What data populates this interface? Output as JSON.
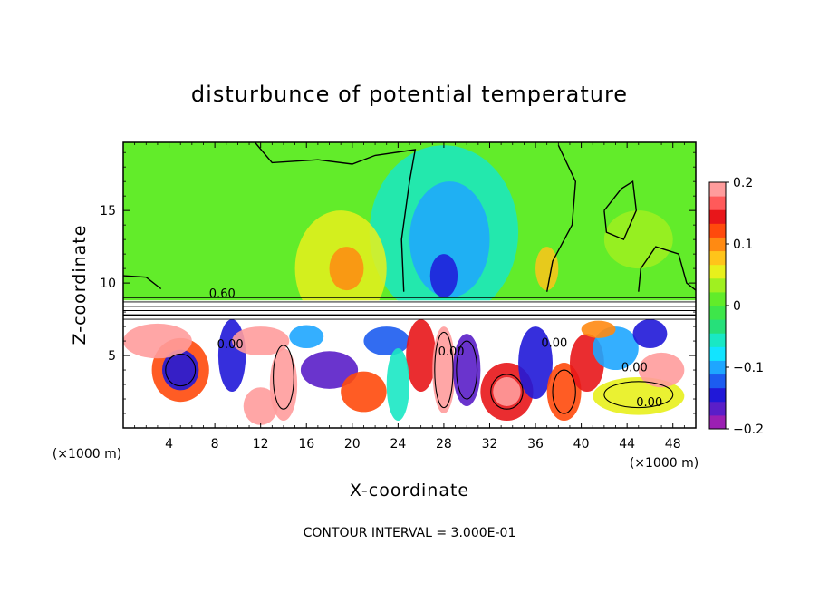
{
  "chart_data": {
    "type": "heatmap",
    "title": "disturbunce of potential temperature",
    "xlabel": "X-coordinate",
    "ylabel": "Z-coordinate",
    "x_unit": "(×1000 m)",
    "x_ticks": [
      4,
      8,
      12,
      16,
      20,
      24,
      28,
      32,
      36,
      40,
      44,
      48
    ],
    "y_ticks": [
      5,
      10,
      15
    ],
    "xlim": [
      0,
      50
    ],
    "ylim": [
      0,
      19.7
    ],
    "colorbar": {
      "ticks": [
        0.2,
        0.1,
        0,
        -0.1,
        -0.2
      ],
      "tick_labels": [
        "0.2",
        "0.1",
        "0",
        "−0.1",
        "−0.2"
      ],
      "range": [
        -0.2,
        0.2
      ],
      "colors": [
        "#9b1fb3",
        "#5a1ec8",
        "#2018d8",
        "#1c5cf0",
        "#1ea6ff",
        "#12e4ff",
        "#19e8c4",
        "#26e07a",
        "#3ee64a",
        "#62ec2a",
        "#a0f020",
        "#e8f01c",
        "#ffc41a",
        "#ff8a12",
        "#ff4a0c",
        "#e8161a",
        "#ff5a5a",
        "#ff9c9c"
      ]
    },
    "contour_labels": [
      "0.60",
      "0.00",
      "0.00",
      "0.00",
      "0.00",
      "0.00"
    ],
    "footnote": "CONTOUR INTERVAL = 3.000E-01",
    "fields": {
      "upper_background": 0.0,
      "upper_blobs": [
        {
          "x": 28,
          "z": 13.5,
          "rx": 6.5,
          "rz": 6,
          "v": -0.05
        },
        {
          "x": 28.5,
          "z": 13,
          "rx": 3.5,
          "rz": 4,
          "v": -0.1
        },
        {
          "x": 28,
          "z": 10.5,
          "rx": 1.2,
          "rz": 1.5,
          "v": -0.15
        },
        {
          "x": 19,
          "z": 11,
          "rx": 4,
          "rz": 4,
          "v": 0.05
        },
        {
          "x": 19.5,
          "z": 11,
          "rx": 1.5,
          "rz": 1.5,
          "v": 0.09
        },
        {
          "x": 37,
          "z": 11,
          "rx": 1,
          "rz": 1.5,
          "v": 0.07
        },
        {
          "x": 45,
          "z": 13,
          "rx": 3,
          "rz": 2,
          "v": 0.03
        }
      ],
      "lower_blobs": [
        {
          "x": 5,
          "z": 4,
          "rx": 2.5,
          "rz": 2.2,
          "v": 0.12
        },
        {
          "x": 5,
          "z": 4,
          "rx": 1.6,
          "rz": 1.4,
          "v": -0.14
        },
        {
          "x": 3,
          "z": 6,
          "rx": 3,
          "rz": 1.2,
          "v": 0.2
        },
        {
          "x": 9.5,
          "z": 5,
          "rx": 1.2,
          "rz": 2.5,
          "v": -0.15
        },
        {
          "x": 14,
          "z": 3,
          "rx": 1.2,
          "rz": 2.5,
          "v": 0.2
        },
        {
          "x": 18,
          "z": 4,
          "rx": 2.5,
          "rz": 1.3,
          "v": -0.16
        },
        {
          "x": 21,
          "z": 2.5,
          "rx": 2,
          "rz": 1.4,
          "v": 0.12
        },
        {
          "x": 23,
          "z": 6,
          "rx": 2,
          "rz": 1,
          "v": -0.12
        },
        {
          "x": 26,
          "z": 5,
          "rx": 1.3,
          "rz": 2.5,
          "v": 0.15
        },
        {
          "x": 28,
          "z": 4,
          "rx": 1,
          "rz": 3,
          "v": 0.2
        },
        {
          "x": 30,
          "z": 4,
          "rx": 1.2,
          "rz": 2.5,
          "v": -0.16
        },
        {
          "x": 33.5,
          "z": 2.5,
          "rx": 2.3,
          "rz": 2,
          "v": 0.14
        },
        {
          "x": 33.5,
          "z": 2.5,
          "rx": 1.2,
          "rz": 1,
          "v": 0.2
        },
        {
          "x": 36,
          "z": 4.5,
          "rx": 1.5,
          "rz": 2.5,
          "v": -0.14
        },
        {
          "x": 38.5,
          "z": 2.5,
          "rx": 1.5,
          "rz": 2,
          "v": 0.12
        },
        {
          "x": 40.5,
          "z": 4.5,
          "rx": 1.5,
          "rz": 2,
          "v": 0.14
        },
        {
          "x": 43,
          "z": 5.5,
          "rx": 2,
          "rz": 1.5,
          "v": -0.1
        },
        {
          "x": 45,
          "z": 2.2,
          "rx": 4,
          "rz": 1.3,
          "v": 0.06
        },
        {
          "x": 47,
          "z": 4,
          "rx": 2,
          "rz": 1.2,
          "v": 0.18
        },
        {
          "x": 46,
          "z": 6.5,
          "rx": 1.5,
          "rz": 1,
          "v": -0.14
        },
        {
          "x": 41.5,
          "z": 6.8,
          "rx": 1.5,
          "rz": 0.6,
          "v": 0.1
        },
        {
          "x": 12,
          "z": 6,
          "rx": 2.5,
          "rz": 1,
          "v": 0.2
        },
        {
          "x": 12,
          "z": 1.5,
          "rx": 1.5,
          "rz": 1.3,
          "v": 0.2
        },
        {
          "x": 24,
          "z": 3,
          "rx": 1,
          "rz": 2.5,
          "v": -0.06
        },
        {
          "x": 16,
          "z": 6.3,
          "rx": 1.5,
          "rz": 0.8,
          "v": -0.1
        }
      ]
    }
  }
}
